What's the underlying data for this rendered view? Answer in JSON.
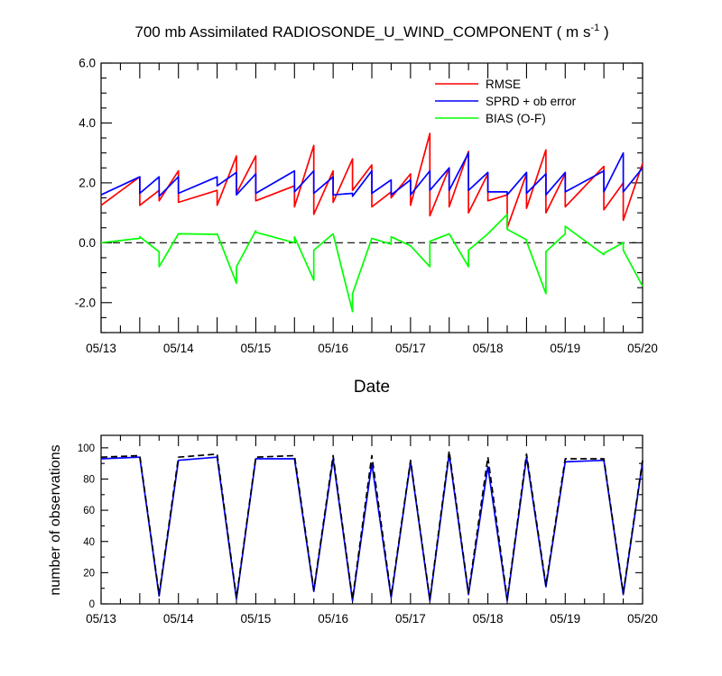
{
  "chart_data": [
    {
      "type": "line",
      "title_main": "700 mb Assimilated RADIOSONDE_U_WIND_COMPONENT ( m s",
      "title_sup": "-1",
      "title_end": " )",
      "xlabel": "Date",
      "ylabel": "",
      "x_tick_labels": [
        "05/13",
        "05/14",
        "05/15",
        "05/16",
        "05/17",
        "05/18",
        "05/19",
        "05/20"
      ],
      "x_range": [
        0,
        7
      ],
      "ylim": [
        -3,
        6
      ],
      "y_ticks": [
        6,
        4,
        2,
        0,
        -2
      ],
      "y_tick_labels": [
        "6.0",
        "4.0",
        "2.0",
        "0.0",
        "-2.0"
      ],
      "zero_line": "dashed",
      "legend_position": "top-right",
      "series": [
        {
          "name": "RMSE",
          "color": "#ff0000",
          "x": [
            0,
            0.5,
            0.5,
            0.75,
            0.75,
            1,
            1,
            1.5,
            1.5,
            1.75,
            1.75,
            2,
            2,
            2.5,
            2.5,
            2.75,
            2.75,
            3,
            3,
            3.25,
            3.25,
            3.5,
            3.5,
            3.75,
            3.75,
            4,
            4,
            4.25,
            4.25,
            4.5,
            4.5,
            4.75,
            4.75,
            5,
            5,
            5.25,
            5.25,
            5.5,
            5.5,
            5.75,
            5.75,
            6,
            6,
            6.5,
            6.5,
            6.75,
            6.75,
            7
          ],
          "y": [
            1.25,
            2.2,
            1.25,
            1.75,
            1.4,
            2.4,
            1.35,
            1.75,
            1.25,
            2.9,
            1.65,
            2.9,
            1.4,
            1.9,
            1.2,
            3.25,
            0.95,
            2.4,
            1.35,
            2.8,
            1.75,
            2.6,
            1.2,
            1.7,
            1.5,
            2.3,
            1.25,
            3.65,
            0.9,
            2.5,
            1.2,
            3.05,
            1.0,
            2.3,
            1.4,
            1.6,
            0.5,
            2.3,
            1.15,
            3.1,
            1.0,
            2.3,
            1.2,
            2.55,
            1.1,
            2.0,
            0.75,
            2.65
          ]
        },
        {
          "name": "SPRD + ob error",
          "color": "#0000ff",
          "x": [
            0,
            0.5,
            0.5,
            0.75,
            0.75,
            1,
            1,
            1.5,
            1.5,
            1.75,
            1.75,
            2,
            2,
            2.5,
            2.5,
            2.75,
            2.75,
            3,
            3,
            3.25,
            3.25,
            3.5,
            3.5,
            3.75,
            3.75,
            4,
            4,
            4.25,
            4.25,
            4.5,
            4.5,
            4.75,
            4.75,
            5,
            5,
            5.25,
            5.25,
            5.5,
            5.5,
            5.75,
            5.75,
            6,
            6,
            6.5,
            6.5,
            6.75,
            6.75,
            7
          ],
          "y": [
            1.6,
            2.2,
            1.65,
            2.2,
            1.55,
            2.2,
            1.65,
            2.2,
            1.9,
            2.35,
            1.6,
            2.3,
            1.65,
            2.4,
            1.7,
            2.4,
            1.65,
            2.2,
            1.6,
            1.65,
            1.55,
            2.4,
            1.65,
            2.1,
            1.6,
            2.1,
            1.6,
            2.4,
            1.75,
            2.5,
            1.75,
            3.0,
            1.75,
            2.35,
            1.7,
            1.7,
            1.6,
            2.35,
            1.65,
            2.3,
            1.6,
            2.35,
            1.7,
            2.4,
            1.7,
            3.0,
            1.7,
            2.5
          ]
        },
        {
          "name": "BIAS (O-F)",
          "color": "#00ff00",
          "x": [
            0,
            0.5,
            0.5,
            0.75,
            0.75,
            1,
            1,
            1.5,
            1.5,
            1.75,
            1.75,
            2,
            2,
            2.5,
            2.5,
            2.75,
            2.75,
            3,
            3,
            3.25,
            3.25,
            3.5,
            3.5,
            3.75,
            3.75,
            4,
            4,
            4.25,
            4.25,
            4.5,
            4.5,
            4.75,
            4.75,
            5,
            5,
            5.25,
            5.25,
            5.5,
            5.5,
            5.75,
            5.75,
            6,
            6,
            6.5,
            6.5,
            6.75,
            6.75,
            7
          ],
          "y": [
            0.0,
            0.15,
            0.2,
            -0.3,
            -0.8,
            0.3,
            0.3,
            0.28,
            0.3,
            -1.35,
            -0.8,
            0.4,
            0.35,
            0.0,
            0.2,
            -1.25,
            -0.25,
            0.3,
            0.3,
            -2.3,
            -1.7,
            0.15,
            0.15,
            -0.05,
            0.2,
            -0.1,
            -0.1,
            -0.8,
            0.05,
            0.3,
            0.3,
            -0.8,
            -0.25,
            0.3,
            0.3,
            0.95,
            0.45,
            0.1,
            0.05,
            -1.7,
            -0.3,
            0.3,
            0.55,
            -0.4,
            -0.35,
            0.0,
            -0.25,
            -1.45
          ]
        }
      ]
    },
    {
      "type": "line",
      "title": "",
      "xlabel": "",
      "ylabel": "number of observations",
      "x_tick_labels": [
        "05/13",
        "05/14",
        "05/15",
        "05/16",
        "05/17",
        "05/18",
        "05/19",
        "05/20"
      ],
      "x_range": [
        0,
        7
      ],
      "ylim": [
        0,
        108
      ],
      "y_ticks": [
        0,
        20,
        40,
        60,
        80,
        100
      ],
      "y_tick_labels": [
        "0",
        "20",
        "40",
        "60",
        "80",
        "100"
      ],
      "series": [
        {
          "name": "assimilated",
          "color": "#0000ff",
          "style": "solid",
          "x": [
            0,
            0.5,
            0.75,
            1,
            1.5,
            1.75,
            2,
            2.5,
            2.75,
            3,
            3.25,
            3.5,
            3.75,
            4,
            4.25,
            4.5,
            4.75,
            5,
            5.25,
            5.5,
            5.75,
            6,
            6.5,
            6.75,
            7
          ],
          "y": [
            93,
            94,
            5,
            92,
            94,
            3,
            93,
            93,
            8,
            93,
            2,
            90,
            4,
            91,
            2,
            96,
            6,
            88,
            2,
            94,
            11,
            91,
            92,
            6,
            91
          ]
        },
        {
          "name": "possible",
          "color": "#000000",
          "style": "dashed",
          "x": [
            0,
            0.5,
            0.75,
            1,
            1.5,
            1.75,
            2,
            2.5,
            2.75,
            3,
            3.25,
            3.5,
            3.75,
            4,
            4.25,
            4.5,
            4.75,
            5,
            5.25,
            5.5,
            5.75,
            6,
            6.5,
            6.75,
            7
          ],
          "y": [
            94,
            95,
            6,
            94,
            96,
            4,
            94,
            95,
            9,
            95,
            3,
            95,
            5,
            92,
            3,
            98,
            7,
            94,
            3,
            96,
            12,
            93,
            93,
            7,
            92
          ]
        }
      ]
    }
  ]
}
